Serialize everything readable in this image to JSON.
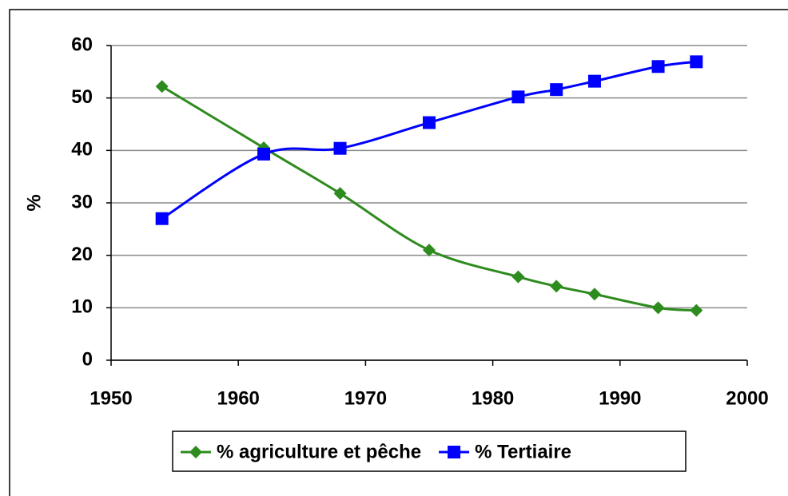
{
  "chart_data": {
    "type": "line",
    "y_label": "%",
    "x": [
      1954,
      1962,
      1968,
      1975,
      1982,
      1985,
      1988,
      1993,
      1996
    ],
    "series": [
      {
        "name": "% agriculture et pêche",
        "color": "#2e8b1e",
        "marker": "diamond",
        "values": [
          52.2,
          40.5,
          31.8,
          21,
          15.9,
          14.1,
          12.6,
          10,
          9.5
        ]
      },
      {
        "name": "% Tertiaire",
        "color": "#0000ff",
        "marker": "square",
        "values": [
          27,
          39.3,
          40.4,
          45.3,
          50.2,
          51.6,
          53.2,
          56,
          56.9
        ]
      }
    ],
    "xlim": [
      1950,
      2000
    ],
    "xticks": [
      1950,
      1960,
      1970,
      1980,
      1990,
      2000
    ],
    "ylim": [
      0,
      60
    ],
    "yticks": [
      0,
      10,
      20,
      30,
      40,
      50,
      60
    ],
    "grid": true,
    "smooth": true,
    "legend": "bottom"
  }
}
